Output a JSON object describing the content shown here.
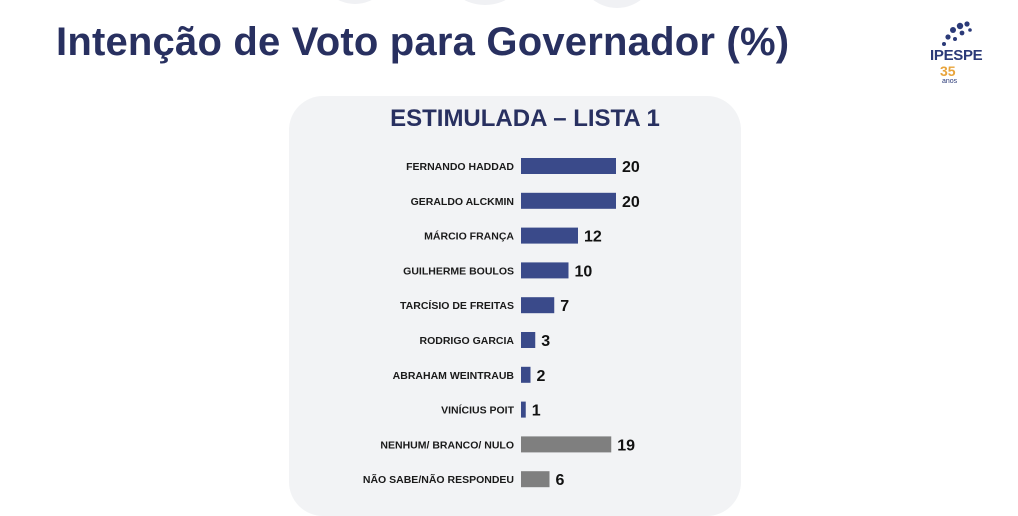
{
  "header": {
    "title": "Intenção de Voto para Governador (%)",
    "logo_text": "IPESPE",
    "logo_years": "35",
    "logo_sub": "anos"
  },
  "chart_data": {
    "type": "bar",
    "orientation": "horizontal",
    "title": "ESTIMULADA – LISTA 1",
    "xlabel": "",
    "ylabel": "",
    "xlim": [
      0,
      20
    ],
    "grid": false,
    "categories": [
      "FERNANDO HADDAD",
      "GERALDO ALCKMIN",
      "MÁRCIO FRANÇA",
      "GUILHERME BOULOS",
      "TARCÍSIO DE FREITAS",
      "RODRIGO GARCIA",
      "ABRAHAM WEINTRAUB",
      "VINÍCIUS POIT",
      "NENHUM/ BRANCO/ NULO",
      "NÃO SABE/NÃO RESPONDEU"
    ],
    "values": [
      20,
      20,
      12,
      10,
      7,
      3,
      2,
      1,
      19,
      6
    ],
    "colors": [
      "#3a4a8a",
      "#3a4a8a",
      "#3a4a8a",
      "#3a4a8a",
      "#3a4a8a",
      "#3a4a8a",
      "#3a4a8a",
      "#3a4a8a",
      "#7f7f7f",
      "#7f7f7f"
    ]
  }
}
